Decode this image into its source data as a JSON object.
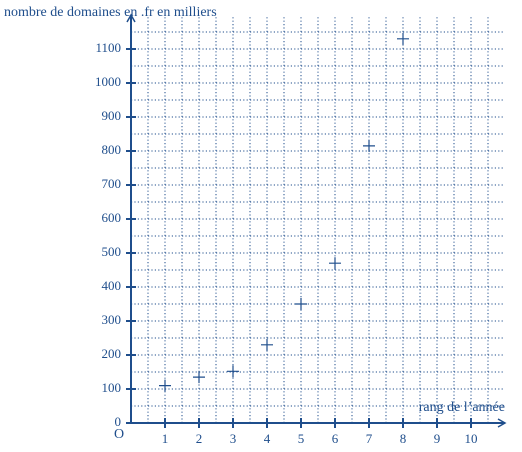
{
  "chart_data": {
    "type": "scatter",
    "title": "nombre de domaines en .fr en milliers",
    "x_label": "rang de l’année",
    "origin_label": "O",
    "x": [
      1,
      2,
      3,
      4,
      5,
      6,
      7,
      8
    ],
    "y": [
      110,
      135,
      152,
      230,
      350,
      470,
      815,
      1130
    ],
    "color": "#1f4e8c",
    "marker": "plus",
    "xlim": [
      0,
      11
    ],
    "ylim": [
      0,
      1200
    ],
    "xticks": [
      1,
      2,
      3,
      4,
      5,
      6,
      7,
      8,
      9,
      10
    ],
    "yticks": [
      0,
      100,
      200,
      300,
      400,
      500,
      600,
      700,
      800,
      900,
      1000,
      1100
    ],
    "grid": "dotted",
    "minor_grid": true
  }
}
